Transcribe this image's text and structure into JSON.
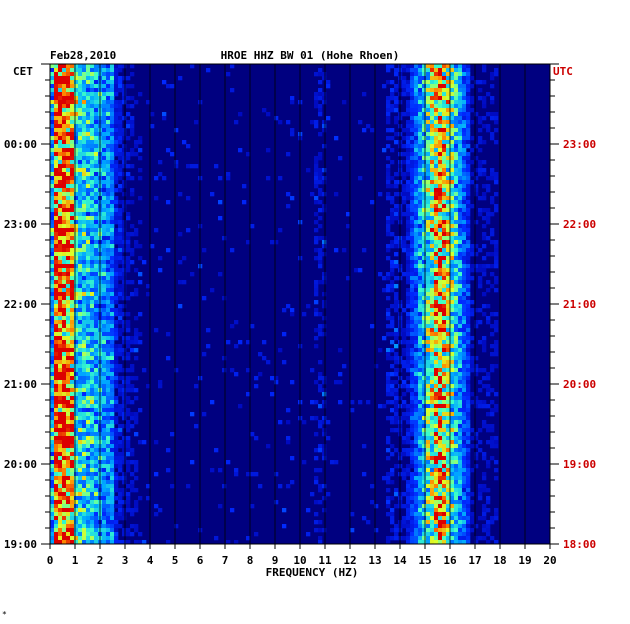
{
  "chart_data": {
    "type": "heatmap",
    "date": "Feb28,2010",
    "title": "HROE HHZ BW 01 (Hohe Rhoen)",
    "left_axis_label": "CET",
    "right_axis_label": "UTC",
    "xlabel": "FREQUENCY (HZ)",
    "xlim": [
      0,
      20
    ],
    "x_ticks": [
      "0",
      "1",
      "2",
      "3",
      "4",
      "5",
      "6",
      "7",
      "8",
      "9",
      "10",
      "11",
      "12",
      "13",
      "14",
      "15",
      "16",
      "17",
      "18",
      "19",
      "20"
    ],
    "cet_ticks": [
      "00:00",
      "23:00",
      "22:00",
      "21:00",
      "20:00",
      "19:00"
    ],
    "utc_ticks": [
      "23:00",
      "22:00",
      "21:00",
      "20:00",
      "19:00",
      "18:00"
    ],
    "time_range_utc": [
      "18:00",
      "24:00"
    ],
    "colors": {
      "background": "#ffffff",
      "base": "#000080",
      "grid": "#000000",
      "cet_label": "#000000",
      "utc_label": "#cc0000"
    },
    "energy_bands": [
      {
        "freq_range": [
          0.2,
          1.0
        ],
        "intensity": "high"
      },
      {
        "freq_range": [
          1.0,
          2.5
        ],
        "intensity": "medium"
      },
      {
        "freq_range": [
          14.2,
          16.8
        ],
        "intensity": "very high",
        "peak_hz": 15.6
      }
    ]
  },
  "footer_mark": "*"
}
